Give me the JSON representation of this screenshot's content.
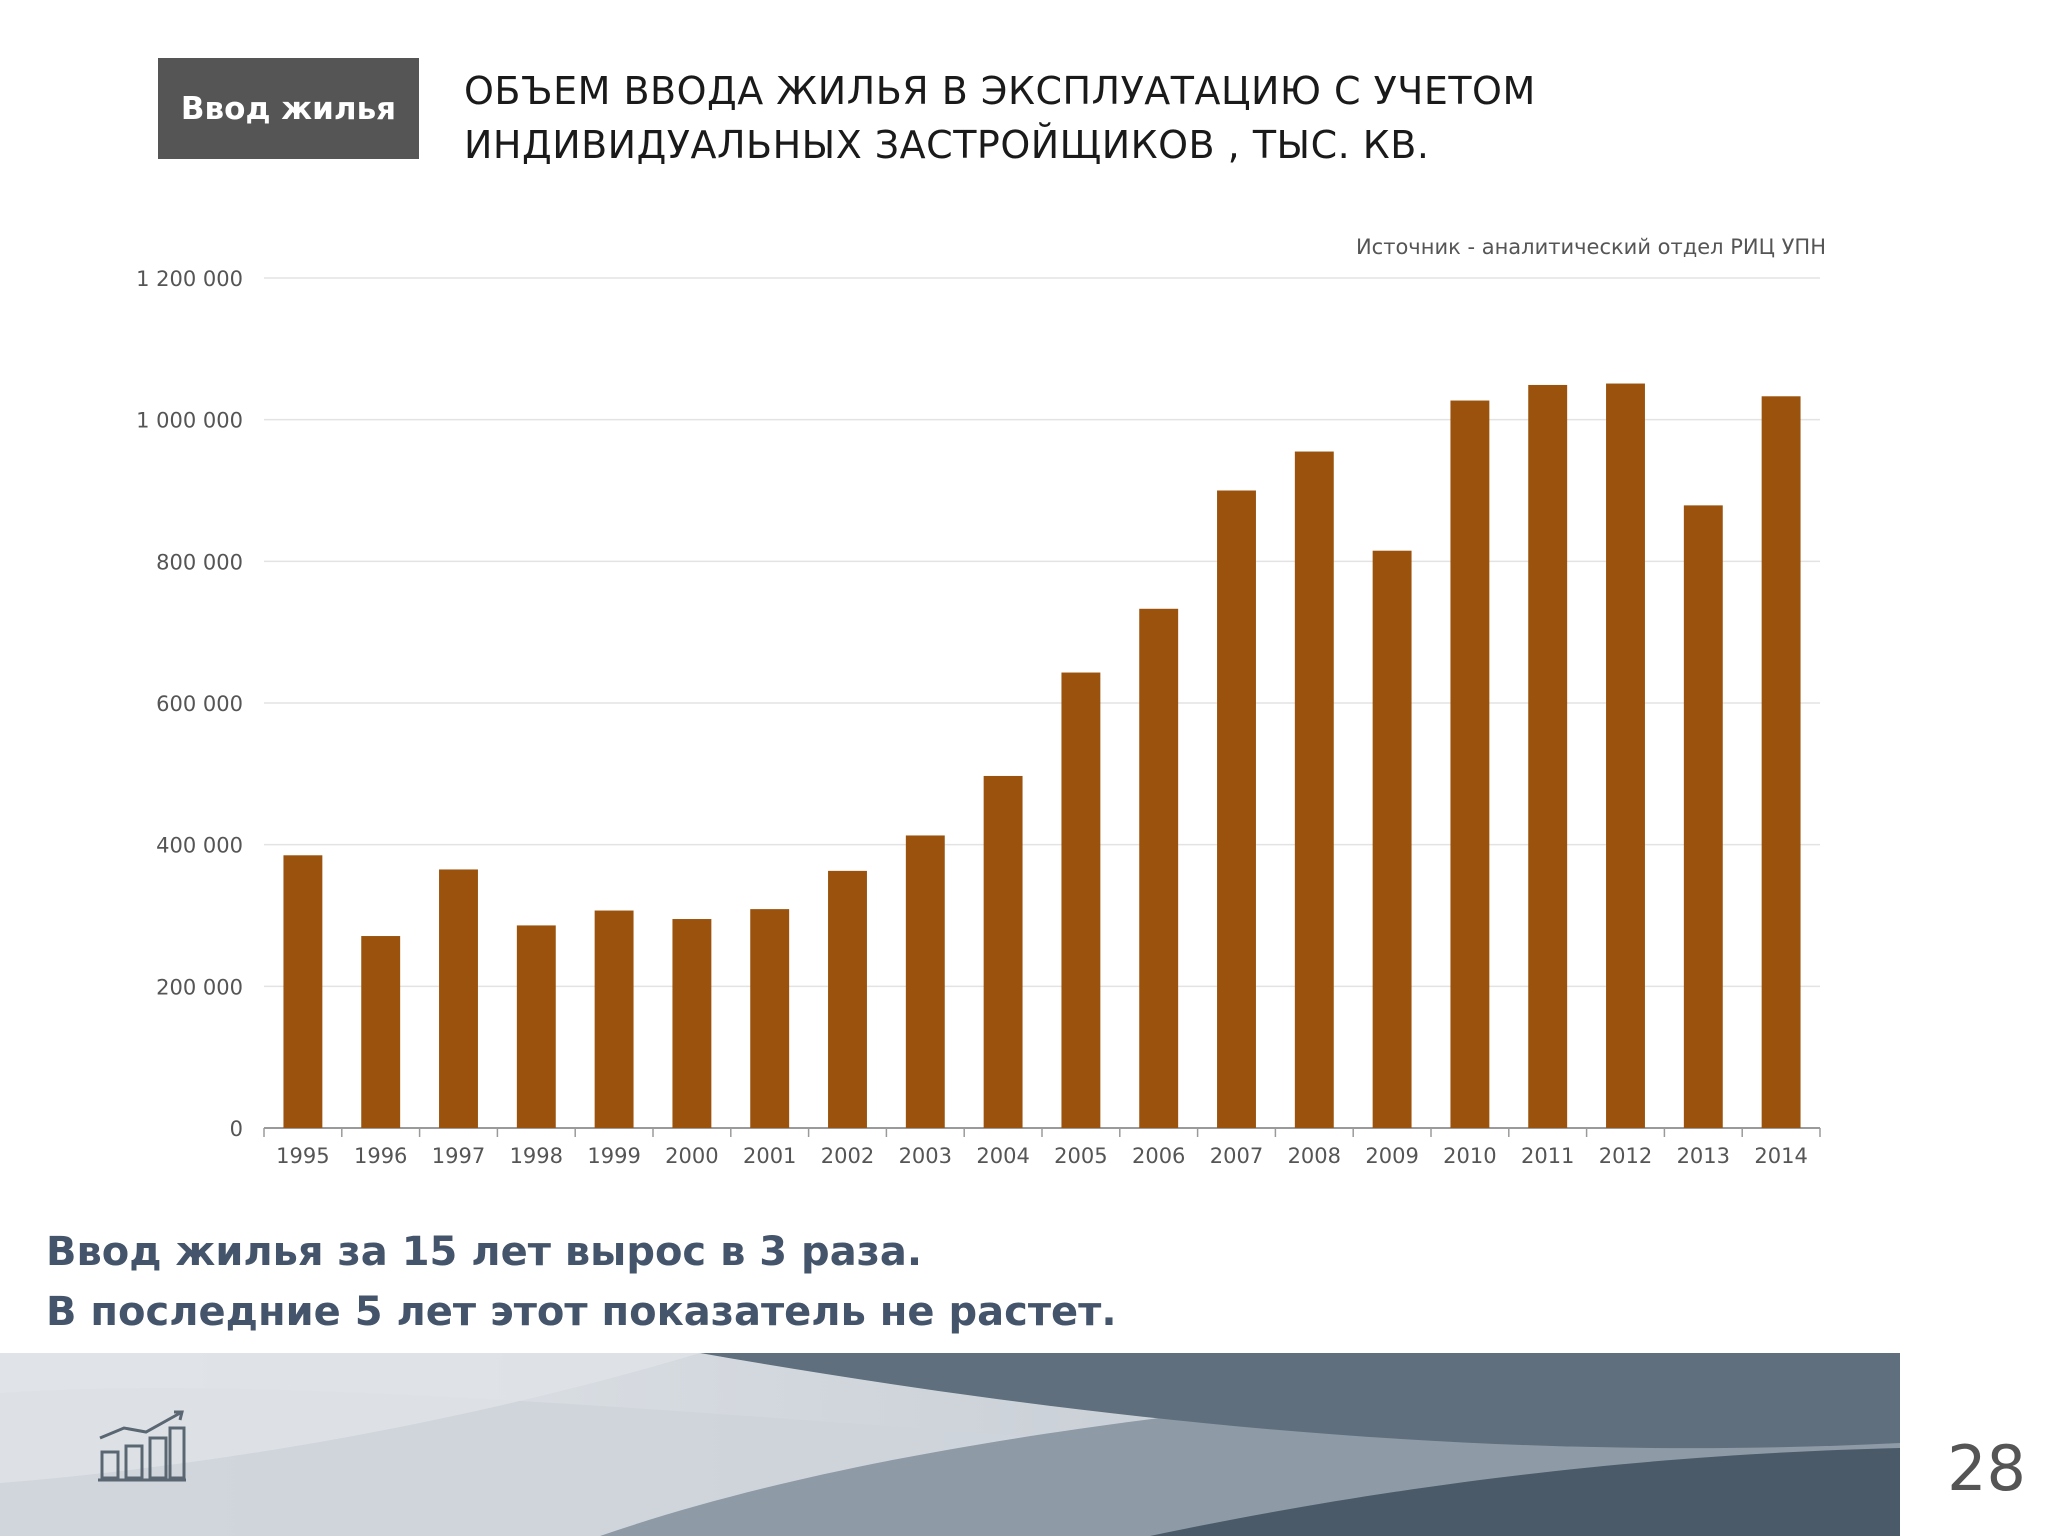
{
  "header": {
    "tag_label": "Ввод жилья",
    "title_line1": "ОБЪЕМ ВВОДА ЖИЛЬЯ В ЭКСПЛУАТАЦИЮ С УЧЕТОМ",
    "title_line2": "ИНДИВИДУАЛЬНЫХ ЗАСТРОЙЩИКОВ , ТЫС. КВ."
  },
  "source_note": "Источник - аналитический отдел РИЦ УПН",
  "chart_data": {
    "type": "bar",
    "categories": [
      "1995",
      "1996",
      "1997",
      "1998",
      "1999",
      "2000",
      "2001",
      "2002",
      "2003",
      "2004",
      "2005",
      "2006",
      "2007",
      "2008",
      "2009",
      "2010",
      "2011",
      "2012",
      "2013",
      "2014"
    ],
    "values": [
      385000,
      271000,
      365000,
      286000,
      307000,
      295000,
      309000,
      363000,
      413000,
      497000,
      643000,
      733000,
      900000,
      955000,
      815000,
      1027000,
      1049000,
      1051000,
      879000,
      1033000
    ],
    "y_ticks": [
      "0",
      "200 000",
      "400 000",
      "600 000",
      "800 000",
      "1 000 000",
      "1 200 000"
    ],
    "y_tick_values": [
      0,
      200000,
      400000,
      600000,
      800000,
      1000000,
      1200000
    ],
    "ylim": [
      0,
      1200000
    ],
    "grid": true,
    "legend": "none",
    "bar_color": "#9a520c"
  },
  "conclusion": {
    "line1": "Ввод жилья за 15 лет вырос в 3 раза.",
    "line2": "В последние 5 лет этот показатель не растет."
  },
  "footer": {
    "page_number": "28",
    "logo_icon": "growth-chart-icon"
  },
  "colors": {
    "accent_text": "#44546a",
    "tag_background": "#555555"
  }
}
